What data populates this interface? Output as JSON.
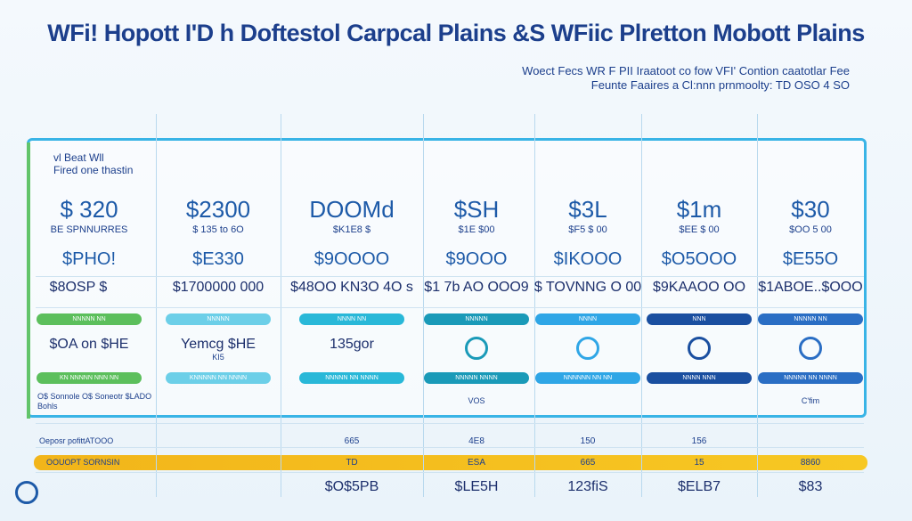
{
  "header": {
    "title": "WFi! Hopott I'D h Doftestol Carpcal Plains &S WFiic Plretton Mobott Plains",
    "subtitle": [
      "Woect Fecs WR F PII Iraatoot co fow VFI' Contion caatotlar Fee",
      "Feunte Faaires a Cl:nnn prnmoolty: TD OSO 4 SO"
    ]
  },
  "table": {
    "columns": [
      {
        "heading": [
          "vl Beat Wll",
          "Fired one thastin"
        ],
        "price": "$ 320",
        "price_note": "BE SPNNURRES",
        "promo": "$PHO!",
        "offer": "$8OSP $",
        "button": "NNNNN NN",
        "feature": "$OA on $HE",
        "action": "KN NNNNN NNN NN",
        "note": [
          "O$ Sonnole  O$ Soneotr $LADO",
          "Bohls"
        ]
      },
      {
        "price": "$2300",
        "price_note": "$ 135 to 6O",
        "promo": "$E330",
        "offer": "$1700000 000",
        "button": "NNNNN",
        "feature": "Yemcg $HE",
        "feature_note": "KI5",
        "action": "KNNNNN NN NNNN"
      },
      {
        "price": "DOOMd",
        "price_note": "$K1E8 $",
        "promo": "$9OOOO",
        "offer": "$48OO KN3O 4O s",
        "button": "NNNN NN",
        "feature": "135gor",
        "action": "NNNNN NN NNNN"
      },
      {
        "price": "$SH",
        "price_note": "$1E $00",
        "promo": "$9OOO",
        "offer": "$1 7b AO OOO9",
        "button": "NNNNN",
        "action": "NNNNN NNNN",
        "feature_note": "VOS"
      },
      {
        "price": "$3L",
        "price_note": "$F5 $ 00",
        "promo": "$IKOOO",
        "offer": "$ TOVNNG O 00",
        "button": "NNNN",
        "action": "NNNNNN NN NN"
      },
      {
        "price": "$1m",
        "price_note": "$EE $ 00",
        "promo": "$O5OOO",
        "offer": "$9KAAOO OO",
        "button": "NNN",
        "action": "NNNN NNN"
      },
      {
        "price": "$30",
        "price_note": "$OO 5 00",
        "promo": "$E55O",
        "offer": "$1ABOE..$OOO",
        "button": "NNNNN NN",
        "action": "NNNNN NN NNNN",
        "feature_note": "C'fim"
      }
    ]
  },
  "footer": {
    "rows": [
      {
        "label": "Oeposr pofittATOOO",
        "values": [
          "665",
          "4E8",
          "150",
          "156"
        ]
      },
      {
        "label": "OOUOPT SORNSIN",
        "values": [
          "TD",
          "ESA",
          "665",
          "15",
          "8860"
        ]
      }
    ],
    "prices": [
      "$O$5PB",
      "$LE5H",
      "123fiS",
      "$ELB7",
      "$83"
    ]
  }
}
